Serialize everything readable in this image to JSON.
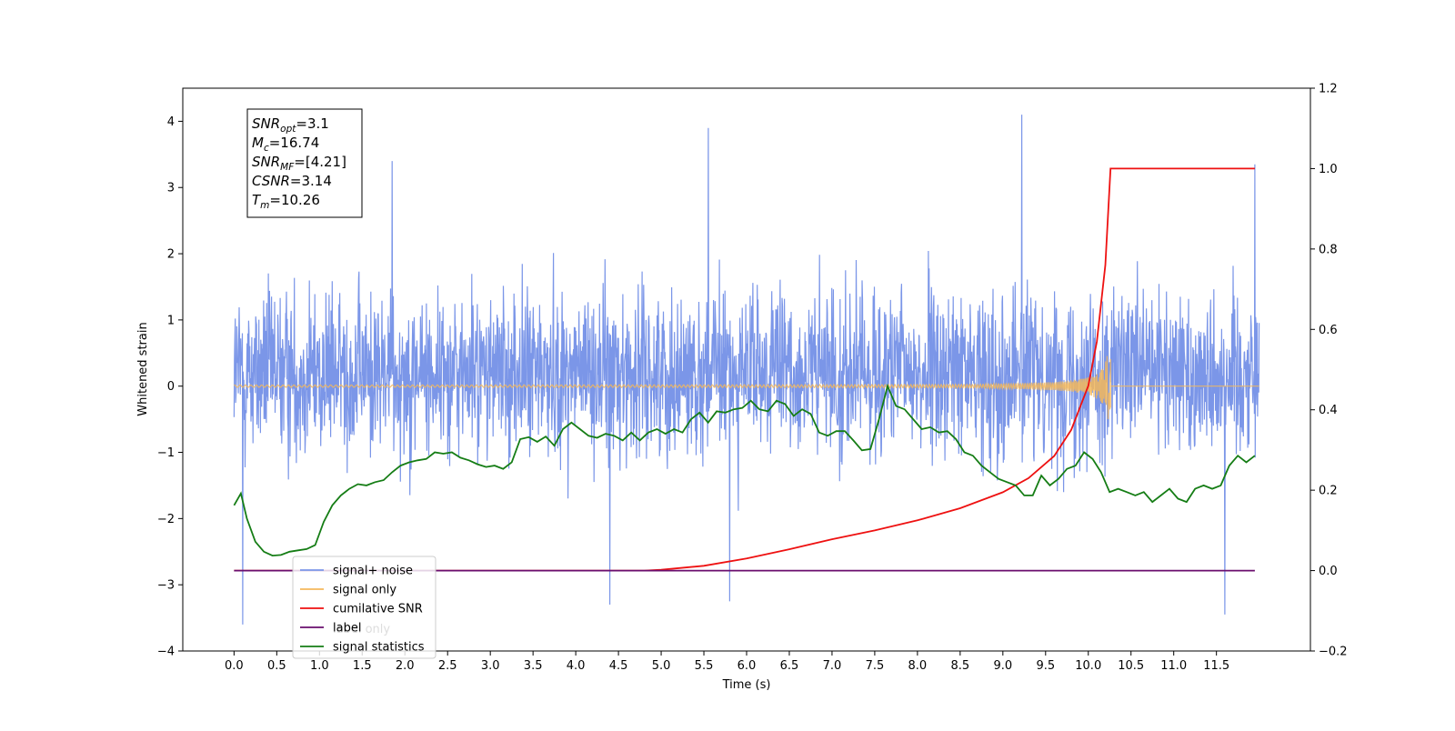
{
  "chart_data": {
    "type": "line",
    "title": "",
    "xlabel": "Time (s)",
    "ylabel": "Whitened strain",
    "xlim": [
      -0.6,
      12.6
    ],
    "ylim": [
      -4,
      4.5
    ],
    "y2lim": [
      -0.2,
      1.2
    ],
    "grid": false,
    "legend_position": "lower-left",
    "x_ticks": [
      "0.0",
      "0.5",
      "1.0",
      "1.5",
      "2.0",
      "2.5",
      "3.0",
      "3.5",
      "4.0",
      "4.5",
      "5.0",
      "5.5",
      "6.0",
      "6.5",
      "7.0",
      "7.5",
      "8.0",
      "8.5",
      "9.0",
      "9.5",
      "10.0",
      "10.5",
      "11.0",
      "11.5"
    ],
    "y_ticks": [
      "−4",
      "−3",
      "−2",
      "−1",
      "0",
      "1",
      "2",
      "3",
      "4"
    ],
    "y2_ticks": [
      "−0.2",
      "0.0",
      "0.2",
      "0.4",
      "0.6",
      "0.8",
      "1.0",
      "1.2"
    ],
    "annotation": [
      {
        "main": "SNR",
        "sub": "opt",
        "value": "=3.1"
      },
      {
        "main": "M",
        "sub": "c",
        "value": "=16.74"
      },
      {
        "main": "SNR",
        "sub": "MF",
        "value": "=[4.21]"
      },
      {
        "main": "CSNR",
        "sub": "",
        "value": "=3.14"
      },
      {
        "main": "T",
        "sub": "m",
        "value": "=10.26"
      }
    ],
    "series": [
      {
        "name": "signal+ noise",
        "axis": "left",
        "color": "#7b96e8",
        "kind": "noise",
        "x_range": [
          0,
          12
        ],
        "envelope_typical": [
          -1.5,
          2.2
        ],
        "notable_peaks": [
          {
            "x": 5.55,
            "y": 3.9
          },
          {
            "x": 9.22,
            "y": 4.1
          },
          {
            "x": 1.85,
            "y": 3.4
          },
          {
            "x": 11.95,
            "y": 3.35
          },
          {
            "x": 0.1,
            "y": -3.6
          },
          {
            "x": 11.6,
            "y": -3.45
          },
          {
            "x": 5.8,
            "y": -3.25
          },
          {
            "x": 4.4,
            "y": -3.3
          }
        ]
      },
      {
        "name": "signal only",
        "axis": "left",
        "color": "#f5b85b",
        "kind": "chirp",
        "x_range": [
          0,
          12
        ],
        "merger_time": 10.26,
        "peak_amplitude": 0.5
      },
      {
        "name": "cumilative SNR",
        "axis": "right",
        "color": "#ee1111",
        "x": [
          0,
          4.8,
          5.0,
          5.5,
          6.0,
          6.5,
          7.0,
          7.5,
          8.0,
          8.5,
          9.0,
          9.3,
          9.6,
          9.8,
          10.0,
          10.1,
          10.2,
          10.26,
          10.26,
          11.95
        ],
        "y": [
          0,
          0,
          0.002,
          0.012,
          0.03,
          0.053,
          0.078,
          0.1,
          0.125,
          0.155,
          0.195,
          0.23,
          0.285,
          0.35,
          0.46,
          0.57,
          0.76,
          1.0,
          1.0,
          1.0
        ]
      },
      {
        "name": "label",
        "axis": "right",
        "color": "#6a0e6e",
        "x": [
          0,
          11.95
        ],
        "y": [
          0,
          0
        ]
      },
      {
        "name": "signal statistics",
        "axis": "left",
        "color": "#157d15",
        "x": [
          0,
          0.08,
          0.15,
          0.25,
          0.35,
          0.45,
          0.55,
          0.65,
          0.75,
          0.85,
          0.95,
          1.05,
          1.15,
          1.25,
          1.35,
          1.45,
          1.55,
          1.65,
          1.75,
          1.85,
          1.95,
          2.05,
          2.15,
          2.25,
          2.35,
          2.45,
          2.55,
          2.65,
          2.75,
          2.85,
          2.95,
          3.05,
          3.15,
          3.25,
          3.35,
          3.45,
          3.55,
          3.65,
          3.75,
          3.85,
          3.95,
          4.05,
          4.15,
          4.25,
          4.35,
          4.45,
          4.55,
          4.65,
          4.75,
          4.85,
          4.95,
          5.05,
          5.15,
          5.25,
          5.35,
          5.45,
          5.55,
          5.65,
          5.75,
          5.85,
          5.95,
          6.05,
          6.15,
          6.25,
          6.35,
          6.45,
          6.55,
          6.65,
          6.75,
          6.85,
          6.95,
          7.05,
          7.15,
          7.25,
          7.35,
          7.45,
          7.55,
          7.65,
          7.75,
          7.85,
          7.95,
          8.05,
          8.15,
          8.25,
          8.35,
          8.45,
          8.55,
          8.65,
          8.75,
          8.85,
          8.95,
          9.05,
          9.15,
          9.25,
          9.35,
          9.45,
          9.55,
          9.65,
          9.75,
          9.85,
          9.95,
          10.05,
          10.15,
          10.25,
          10.35,
          10.45,
          10.55,
          10.65,
          10.75,
          10.85,
          10.95,
          11.05,
          11.15,
          11.25,
          11.35,
          11.45,
          11.55,
          11.65,
          11.75,
          11.85,
          11.95
        ],
        "y": [
          -1.8,
          -1.62,
          -2.0,
          -2.35,
          -2.5,
          -2.56,
          -2.55,
          -2.5,
          -2.48,
          -2.46,
          -2.4,
          -2.05,
          -1.8,
          -1.65,
          -1.55,
          -1.48,
          -1.5,
          -1.45,
          -1.42,
          -1.3,
          -1.2,
          -1.15,
          -1.12,
          -1.1,
          -1.0,
          -1.02,
          -1.0,
          -1.08,
          -1.12,
          -1.18,
          -1.22,
          -1.2,
          -1.25,
          -1.15,
          -0.8,
          -0.77,
          -0.84,
          -0.76,
          -0.9,
          -0.65,
          -0.55,
          -0.65,
          -0.75,
          -0.78,
          -0.72,
          -0.75,
          -0.82,
          -0.7,
          -0.82,
          -0.7,
          -0.65,
          -0.72,
          -0.65,
          -0.7,
          -0.5,
          -0.4,
          -0.55,
          -0.38,
          -0.4,
          -0.35,
          -0.33,
          -0.22,
          -0.35,
          -0.38,
          -0.22,
          -0.27,
          -0.45,
          -0.35,
          -0.42,
          -0.7,
          -0.75,
          -0.68,
          -0.68,
          -0.82,
          -0.97,
          -0.95,
          -0.5,
          0.0,
          -0.3,
          -0.35,
          -0.5,
          -0.65,
          -0.62,
          -0.7,
          -0.68,
          -0.8,
          -1.0,
          -1.05,
          -1.2,
          -1.3,
          -1.4,
          -1.45,
          -1.5,
          -1.65,
          -1.65,
          -1.35,
          -1.5,
          -1.4,
          -1.25,
          -1.2,
          -1.0,
          -1.1,
          -1.3,
          -1.6,
          -1.55,
          -1.6,
          -1.65,
          -1.6,
          -1.75,
          -1.65,
          -1.55,
          -1.7,
          -1.75,
          -1.55,
          -1.5,
          -1.55,
          -1.5,
          -1.2,
          -1.05,
          -1.15,
          -1.05
        ]
      }
    ],
    "legend_entries": [
      "signal+ noise",
      "signal only",
      "cumilative SNR",
      "label",
      "signal statistics"
    ],
    "legend_overlapped_text": "label only"
  }
}
